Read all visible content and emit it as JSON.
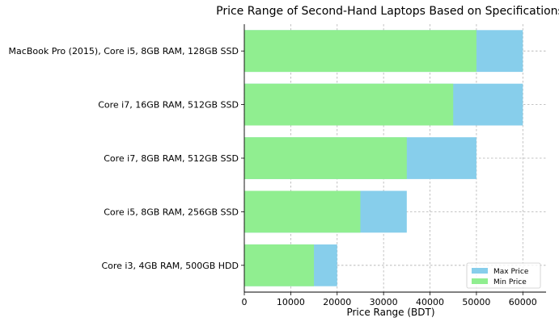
{
  "chart_data": {
    "type": "bar",
    "orientation": "horizontal",
    "title": "Price Range of Second-Hand Laptops Based on Specifications",
    "xlabel": "Price Range (BDT)",
    "ylabel": "",
    "xlim": [
      0,
      65000
    ],
    "xticks": [
      0,
      10000,
      20000,
      30000,
      40000,
      50000,
      60000
    ],
    "grid": true,
    "legend_position": "bottom-right",
    "categories": [
      "Core i3, 4GB RAM, 500GB HDD",
      "Core i5, 8GB RAM, 256GB SSD",
      "Core i7, 8GB RAM, 512GB SSD",
      "Core i7, 16GB RAM, 512GB SSD",
      "MacBook Pro (2015), Core i5, 8GB RAM, 128GB SSD"
    ],
    "series": [
      {
        "name": "Max Price",
        "color": "#87ceeb",
        "values": [
          20000,
          35000,
          50000,
          60000,
          60000
        ]
      },
      {
        "name": "Min Price",
        "color": "#90ee90",
        "values": [
          15000,
          25000,
          35000,
          45000,
          50000
        ]
      }
    ]
  }
}
